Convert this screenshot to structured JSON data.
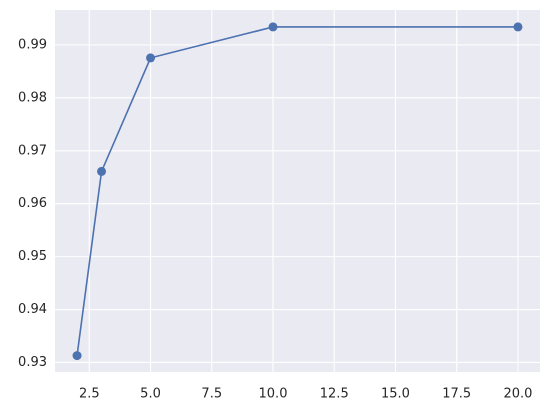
{
  "chart_data": {
    "type": "line",
    "x": [
      2,
      3,
      5,
      10,
      20
    ],
    "series": [
      {
        "color": "#4c72b0",
        "values": [
          0.9313,
          0.9661,
          0.98755,
          0.9934,
          0.9934
        ]
      }
    ],
    "xlim": [
      1.1,
      20.9
    ],
    "xticks": [
      2.5,
      {
        "value": 5,
        "label": "5.0"
      },
      7.5,
      {
        "value": 10,
        "label": "10.0"
      },
      12.5,
      {
        "value": 15,
        "label": "15.0"
      },
      17.5,
      {
        "value": 20,
        "label": "20.0"
      }
    ],
    "ylim": [
      0.9282,
      0.9966
    ],
    "yticks": [
      0.93,
      0.94,
      0.95,
      0.96,
      0.97,
      0.98,
      0.99
    ],
    "grid": true,
    "background": "#eaeaf2"
  }
}
